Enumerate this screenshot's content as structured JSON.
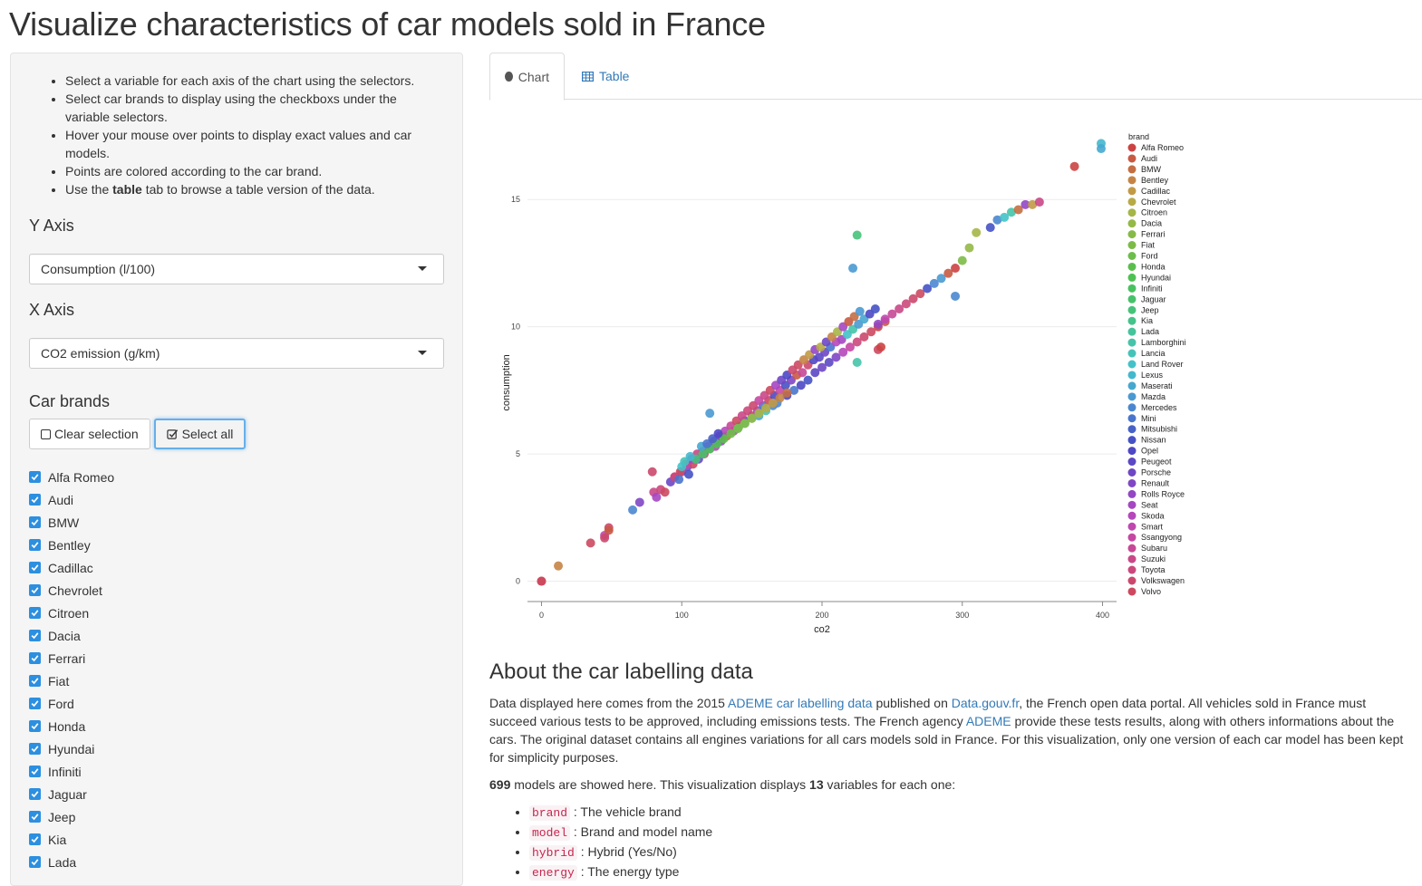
{
  "page": {
    "title": "Visualize characteristics of car models sold in France"
  },
  "sidebar": {
    "help": [
      {
        "text": "Select a variable for each axis of the chart using the selectors."
      },
      {
        "text": "Select car brands to display using the checkboxs under the variable selectors."
      },
      {
        "text": "Hover your mouse over points to display exact values and car models."
      },
      {
        "text": "Points are colored according to the car brand."
      },
      {
        "pre": "Use the ",
        "bold": "table",
        "post": " tab to browse a table version of the data."
      }
    ],
    "y_axis_label": "Y Axis",
    "y_axis_value": "Consumption (l/100)",
    "x_axis_label": "X Axis",
    "x_axis_value": "CO2 emission (g/km)",
    "brands_label": "Car brands",
    "clear_label": "Clear selection",
    "select_all_label": "Select all",
    "brands": [
      "Alfa Romeo",
      "Audi",
      "BMW",
      "Bentley",
      "Cadillac",
      "Chevrolet",
      "Citroen",
      "Dacia",
      "Ferrari",
      "Fiat",
      "Ford",
      "Honda",
      "Hyundai",
      "Infiniti",
      "Jaguar",
      "Jeep",
      "Kia",
      "Lada"
    ]
  },
  "tabs": [
    {
      "label": "Chart",
      "icon": "circle-icon",
      "active": true
    },
    {
      "label": "Table",
      "icon": "table-icon",
      "active": false
    }
  ],
  "chart_data": {
    "type": "scatter",
    "xlabel": "co2",
    "ylabel": "consumption",
    "xlim": [
      -10,
      410
    ],
    "ylim": [
      -0.8,
      17.5
    ],
    "xticks": [
      0,
      100,
      200,
      300,
      400
    ],
    "yticks": [
      0,
      5,
      10,
      15
    ],
    "legend_title": "brand",
    "legend_position": "right",
    "brands": [
      "Alfa Romeo",
      "Audi",
      "BMW",
      "Bentley",
      "Cadillac",
      "Chevrolet",
      "Citroen",
      "Dacia",
      "Ferrari",
      "Fiat",
      "Ford",
      "Honda",
      "Hyundai",
      "Infiniti",
      "Jaguar",
      "Jeep",
      "Kia",
      "Lada",
      "Lamborghini",
      "Lancia",
      "Land Rover",
      "Lexus",
      "Maserati",
      "Mazda",
      "Mercedes",
      "Mini",
      "Mitsubishi",
      "Nissan",
      "Opel",
      "Peugeot",
      "Porsche",
      "Renault",
      "Rolls Royce",
      "Seat",
      "Skoda",
      "Smart",
      "Ssangyong",
      "Subaru",
      "Suzuki",
      "Toyota",
      "Volkswagen",
      "Volvo"
    ],
    "colors": [
      "#cc4343",
      "#c85a42",
      "#c46e43",
      "#c58446",
      "#c29a46",
      "#b8ab47",
      "#a6b647",
      "#95b847",
      "#86ba47",
      "#7dbb47",
      "#6dbd4a",
      "#5abe4d",
      "#4ec152",
      "#48c25e",
      "#47c26b",
      "#46c37a",
      "#44c38a",
      "#44c49a",
      "#45c4aa",
      "#45c3b9",
      "#43c2c8",
      "#44b8cd",
      "#46a8cf",
      "#4a99d1",
      "#4b87cf",
      "#4a75cd",
      "#4763c8",
      "#4652c5",
      "#4e48c4",
      "#5c47c4",
      "#6e47c4",
      "#8047c4",
      "#9247c3",
      "#a547c1",
      "#b547bb",
      "#bf47b0",
      "#c547a3",
      "#c74896",
      "#c94888",
      "#cb487b",
      "#cb486d",
      "#cc4960"
    ],
    "points": [
      [
        0,
        0,
        0
      ],
      [
        0,
        0,
        41
      ],
      [
        12,
        0.6,
        3
      ],
      [
        35,
        1.5,
        41
      ],
      [
        45,
        1.8,
        35
      ],
      [
        48,
        2.1,
        40
      ],
      [
        65,
        2.8,
        24
      ],
      [
        70,
        3.1,
        31
      ],
      [
        80,
        3.5,
        38
      ],
      [
        85,
        3.6,
        39
      ],
      [
        88,
        3.5,
        41
      ],
      [
        82,
        3.3,
        33
      ],
      [
        79,
        4.3,
        40
      ],
      [
        92,
        3.9,
        30
      ],
      [
        95,
        4.1,
        39
      ],
      [
        100,
        4.3,
        34
      ],
      [
        104,
        4.5,
        31
      ],
      [
        108,
        4.6,
        41
      ],
      [
        112,
        4.8,
        30
      ],
      [
        116,
        5.0,
        39
      ],
      [
        120,
        5.2,
        2
      ],
      [
        124,
        5.3,
        34
      ],
      [
        128,
        5.5,
        33
      ],
      [
        132,
        5.7,
        2
      ],
      [
        137,
        5.9,
        35
      ],
      [
        141,
        6.1,
        9
      ],
      [
        145,
        6.3,
        29
      ],
      [
        150,
        6.5,
        40
      ],
      [
        154,
        6.7,
        33
      ],
      [
        158,
        6.9,
        25
      ],
      [
        162,
        7.1,
        41
      ],
      [
        166,
        7.3,
        28
      ],
      [
        170,
        7.5,
        36
      ],
      [
        174,
        7.7,
        27
      ],
      [
        178,
        7.9,
        31
      ],
      [
        182,
        8.1,
        1
      ],
      [
        186,
        8.2,
        37
      ],
      [
        190,
        8.5,
        40
      ],
      [
        194,
        8.7,
        28
      ],
      [
        198,
        8.8,
        29
      ],
      [
        202,
        9.0,
        30
      ],
      [
        206,
        9.2,
        25
      ],
      [
        210,
        9.4,
        34
      ],
      [
        214,
        9.5,
        33
      ],
      [
        218,
        9.7,
        20
      ],
      [
        222,
        9.9,
        18
      ],
      [
        226,
        10.1,
        23
      ],
      [
        230,
        10.3,
        22
      ],
      [
        234,
        10.5,
        28
      ],
      [
        238,
        10.7,
        27
      ],
      [
        95,
        4.1,
        39
      ],
      [
        99,
        4.3,
        41
      ],
      [
        103,
        4.6,
        36
      ],
      [
        107,
        4.8,
        33
      ],
      [
        111,
        5.0,
        38
      ],
      [
        115,
        5.1,
        39
      ],
      [
        119,
        5.3,
        35
      ],
      [
        123,
        5.5,
        33
      ],
      [
        127,
        5.7,
        31
      ],
      [
        131,
        5.9,
        34
      ],
      [
        135,
        6.1,
        37
      ],
      [
        139,
        6.3,
        41
      ],
      [
        143,
        6.5,
        38
      ],
      [
        147,
        6.7,
        39
      ],
      [
        151,
        6.9,
        40
      ],
      [
        155,
        7.1,
        36
      ],
      [
        159,
        7.3,
        38
      ],
      [
        163,
        7.5,
        41
      ],
      [
        167,
        7.7,
        33
      ],
      [
        171,
        7.9,
        30
      ],
      [
        175,
        8.1,
        28
      ],
      [
        179,
        8.3,
        40
      ],
      [
        183,
        8.5,
        41
      ],
      [
        187,
        8.7,
        3
      ],
      [
        191,
        8.9,
        4
      ],
      [
        195,
        9.1,
        32
      ],
      [
        199,
        9.2,
        5
      ],
      [
        203,
        9.4,
        30
      ],
      [
        207,
        9.6,
        3
      ],
      [
        211,
        9.8,
        6
      ],
      [
        215,
        10.0,
        33
      ],
      [
        219,
        10.2,
        1
      ],
      [
        223,
        10.4,
        2
      ],
      [
        227,
        10.6,
        23
      ],
      [
        140,
        6.0,
        19
      ],
      [
        145,
        6.2,
        19
      ],
      [
        150,
        6.4,
        18
      ],
      [
        155,
        6.5,
        22
      ],
      [
        160,
        6.7,
        19
      ],
      [
        165,
        6.9,
        24
      ],
      [
        168,
        7.0,
        24
      ],
      [
        175,
        7.3,
        28
      ],
      [
        180,
        7.5,
        25
      ],
      [
        185,
        7.7,
        28
      ],
      [
        190,
        7.9,
        27
      ],
      [
        195,
        8.2,
        29
      ],
      [
        200,
        8.4,
        30
      ],
      [
        205,
        8.6,
        29
      ],
      [
        210,
        8.8,
        31
      ],
      [
        215,
        9.0,
        34
      ],
      [
        220,
        9.2,
        36
      ],
      [
        225,
        9.4,
        39
      ],
      [
        230,
        9.6,
        40
      ],
      [
        235,
        9.8,
        41
      ],
      [
        240,
        10.0,
        0
      ],
      [
        245,
        10.2,
        1
      ],
      [
        110,
        4.8,
        15
      ],
      [
        115,
        5.0,
        14
      ],
      [
        120,
        5.2,
        13
      ],
      [
        125,
        5.4,
        12
      ],
      [
        130,
        5.6,
        11
      ],
      [
        135,
        5.8,
        10
      ],
      [
        140,
        6.0,
        9
      ],
      [
        145,
        6.2,
        8
      ],
      [
        150,
        6.4,
        7
      ],
      [
        155,
        6.6,
        6
      ],
      [
        160,
        6.8,
        5
      ],
      [
        165,
        7.0,
        4
      ],
      [
        170,
        7.2,
        3
      ],
      [
        175,
        7.4,
        2
      ],
      [
        102,
        4.7,
        19
      ],
      [
        106,
        4.9,
        21
      ],
      [
        114,
        5.3,
        22
      ],
      [
        118,
        5.4,
        25
      ],
      [
        122,
        5.6,
        26
      ],
      [
        126,
        5.8,
        28
      ],
      [
        100,
        4.5,
        20
      ],
      [
        98,
        4.0,
        25
      ],
      [
        105,
        4.2,
        27
      ],
      [
        240,
        10.1,
        32
      ],
      [
        245,
        10.3,
        35
      ],
      [
        250,
        10.5,
        37
      ],
      [
        255,
        10.7,
        38
      ],
      [
        260,
        10.9,
        39
      ],
      [
        265,
        11.1,
        40
      ],
      [
        270,
        11.3,
        41
      ],
      [
        275,
        11.5,
        27
      ],
      [
        280,
        11.7,
        24
      ],
      [
        285,
        11.9,
        23
      ],
      [
        290,
        12.1,
        1
      ],
      [
        295,
        12.3,
        0
      ],
      [
        300,
        12.6,
        9
      ],
      [
        305,
        13.1,
        7
      ],
      [
        310,
        13.7,
        6
      ],
      [
        320,
        13.9,
        27
      ],
      [
        325,
        14.2,
        24
      ],
      [
        330,
        14.3,
        20
      ],
      [
        335,
        14.5,
        18
      ],
      [
        340,
        14.6,
        2
      ],
      [
        345,
        14.8,
        32
      ],
      [
        350,
        14.8,
        4
      ],
      [
        355,
        14.9,
        38
      ],
      [
        120,
        6.6,
        23
      ],
      [
        225,
        13.6,
        15
      ],
      [
        222,
        12.3,
        23
      ],
      [
        295,
        11.2,
        24
      ],
      [
        225,
        8.6,
        18
      ],
      [
        240,
        9.1,
        41
      ],
      [
        242,
        9.2,
        0
      ],
      [
        380,
        16.3,
        0
      ],
      [
        399,
        17.2,
        21
      ],
      [
        399,
        17.0,
        22
      ],
      [
        48,
        2.0,
        1
      ],
      [
        45,
        1.7,
        40
      ]
    ]
  },
  "about": {
    "title": "About the car labelling data",
    "p1_a": "Data displayed here comes from the 2015 ",
    "link1": "ADEME car labelling data",
    "p1_b": " published on ",
    "link2": "Data.gouv.fr",
    "p1_c": ", the French open data portal. All vehicles sold in France must succeed various tests to be approved, including emissions tests. The French agency ",
    "link3": "ADEME",
    "p1_d": " provide these tests results, along with others informations about the cars. The original dataset contains all engines variations for all cars models sold in France. For this visualization, only one version of each car model has been kept for simplicity purposes.",
    "p2_count": "699",
    "p2_a": " models are showed here. This visualization displays ",
    "p2_vars": "13",
    "p2_b": " variables for each one:",
    "vars": [
      {
        "code": "brand",
        "desc": " : The vehicle brand"
      },
      {
        "code": "model",
        "desc": " : Brand and model name"
      },
      {
        "code": "hybrid",
        "desc": " : Hybrid (Yes/No)"
      },
      {
        "code": "energy",
        "desc": " : The energy type"
      }
    ]
  }
}
